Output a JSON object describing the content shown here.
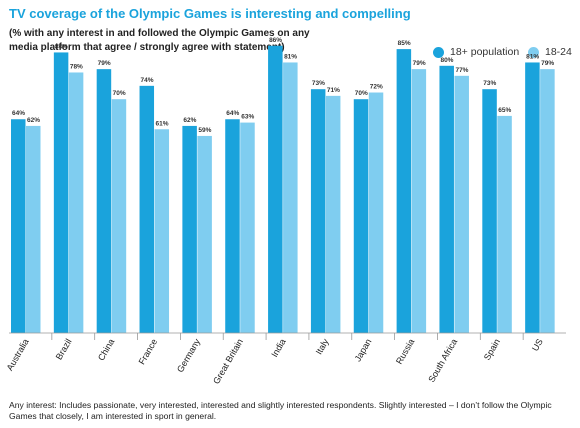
{
  "title": "TV coverage of the Olympic Games is interesting and compelling",
  "subtitle": "(% with any interest in and followed the Olympic Games on any media platform that agree / strongly agree with statement)",
  "footnote": "Any interest: Includes passionate, very interested, interested and slightly interested respondents. Slightly interested – I don’t follow the Olympic Games that closely, I am interested in sport in general.",
  "colors": {
    "series1": "#1aa3dc",
    "series2": "#7fcdf0",
    "title": "#1aa3dc"
  },
  "chart_data": {
    "type": "bar",
    "categories": [
      "Australia",
      "Brazil",
      "China",
      "France",
      "Germany",
      "Great Britain",
      "India",
      "Italy",
      "Japan",
      "Russia",
      "South Africa",
      "Spain",
      "US"
    ],
    "series": [
      {
        "name": "18+ population",
        "values": [
          64,
          84,
          79,
          74,
          62,
          64,
          86,
          73,
          70,
          85,
          80,
          73,
          81
        ],
        "labels": [
          "64%",
          "84%",
          "79%",
          "74%",
          "62%",
          "64%",
          "86%",
          "73%",
          "70%",
          "85%",
          "80%",
          "73%",
          "81%"
        ]
      },
      {
        "name": "18-24",
        "values": [
          62,
          78,
          70,
          61,
          59,
          63,
          81,
          71,
          72,
          79,
          77,
          65,
          79
        ],
        "labels": [
          "62%",
          "78%",
          "70%",
          "61%",
          "59%",
          "63%",
          "81%",
          "71%",
          "72%",
          "79%",
          "77%",
          "65%",
          "79%"
        ]
      }
    ],
    "ylim": [
      0,
      100
    ],
    "grid": false,
    "legend_position": "top-right"
  }
}
